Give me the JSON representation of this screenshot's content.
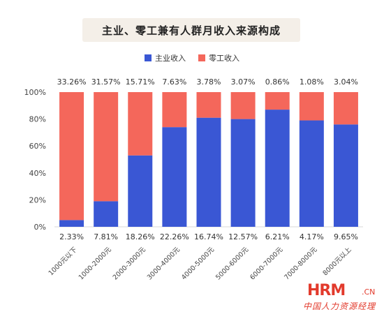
{
  "title": "主业、零工兼有人群月收入来源构成",
  "legend": {
    "main": "主业收入",
    "gig": "零工收入"
  },
  "colors": {
    "main": "#3a57d4",
    "gig": "#f4675b",
    "banner": "#f4efe8"
  },
  "chart_data": {
    "type": "bar",
    "stacked": true,
    "categories": [
      "1000元以下",
      "1000-2000元",
      "2000-3000元",
      "3000-4000元",
      "4000-5000元",
      "5000-6000元",
      "6000-7000元",
      "7000-8000元",
      "8000元以上"
    ],
    "series": [
      {
        "name": "主业收入",
        "values": [
          5,
          19,
          53,
          74,
          81,
          80,
          87,
          79,
          76
        ]
      },
      {
        "name": "零工收入",
        "values": [
          95,
          81,
          47,
          26,
          19,
          20,
          13,
          21,
          24
        ]
      }
    ],
    "top_labels": [
      "33.26%",
      "31.57%",
      "15.71%",
      "7.63%",
      "3.78%",
      "3.07%",
      "0.86%",
      "1.08%",
      "3.04%"
    ],
    "bottom_labels": [
      "2.33%",
      "7.81%",
      "18.26%",
      "22.26%",
      "16.74%",
      "12.57%",
      "6.21%",
      "4.17%",
      "9.65%"
    ],
    "yticks": [
      "0%",
      "20%",
      "40%",
      "60%",
      "80%",
      "100%"
    ],
    "ylim": [
      0,
      100
    ],
    "legend_position": "top",
    "grid": false
  },
  "watermark": {
    "logo": "HRM",
    "domain": ".CN",
    "subtitle": "中国人力资源经理"
  }
}
